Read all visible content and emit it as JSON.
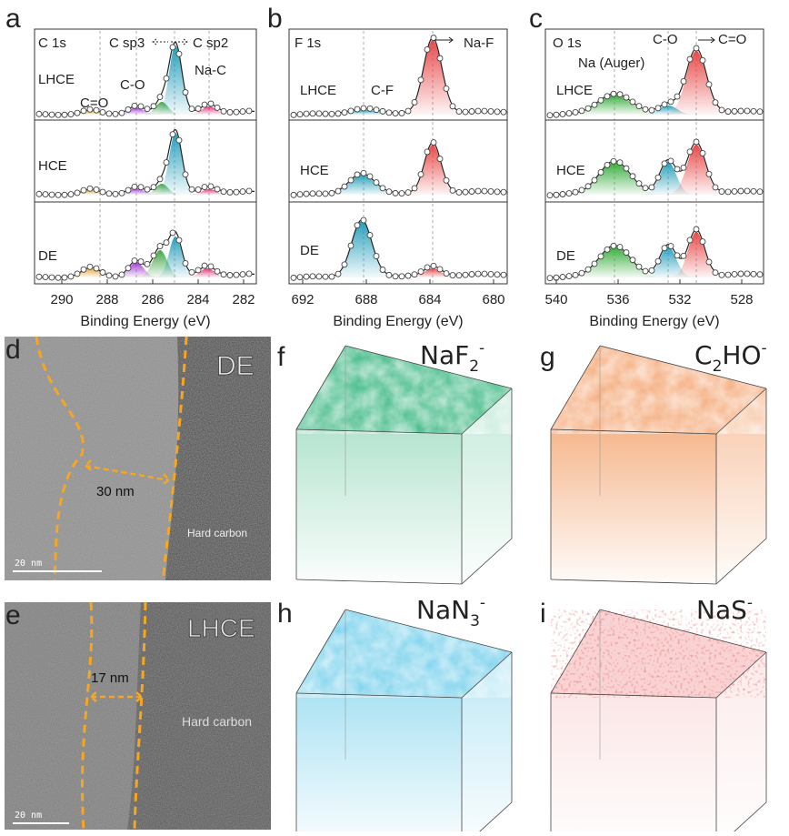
{
  "xps": [
    {
      "letter": "a",
      "core": "C 1s",
      "top_labels": [
        "C sp3",
        "C sp2"
      ],
      "peak_labels": [
        "C=O",
        "C-O",
        "Na-C"
      ],
      "rows": [
        "LHCE",
        "HCE",
        "DE"
      ],
      "xticks": [
        290,
        288,
        286,
        284,
        282
      ],
      "xlabel": "Binding Energy (eV)"
    },
    {
      "letter": "b",
      "core": "F 1s",
      "top_labels": [
        "Na-F"
      ],
      "peak_labels": [
        "C-F"
      ],
      "rows": [
        "LHCE",
        "HCE",
        "DE"
      ],
      "xticks": [
        692,
        688,
        684,
        680
      ],
      "xlabel": "Binding Energy (eV)"
    },
    {
      "letter": "c",
      "core": "O 1s",
      "top_labels": [
        "C-O",
        "C=O"
      ],
      "peak_labels": [
        "Na (Auger)"
      ],
      "rows": [
        "LHCE",
        "HCE",
        "DE"
      ],
      "xticks": [
        540,
        536,
        532,
        528
      ],
      "xlabel": "Binding Energy (eV)"
    }
  ],
  "tem": [
    {
      "letter": "d",
      "label": "DE",
      "thickness": "30 nm",
      "material": "Hard carbon",
      "scale": "20 nm"
    },
    {
      "letter": "e",
      "label": "LHCE",
      "thickness": "17 nm",
      "material": "Hard carbon",
      "scale": "20 nm"
    }
  ],
  "tof": [
    {
      "letter": "f",
      "ion": [
        "NaF",
        "2",
        "-"
      ]
    },
    {
      "letter": "g",
      "ion": [
        "C",
        "2",
        "HO",
        "-"
      ]
    },
    {
      "letter": "h",
      "ion": [
        "NaN",
        "3",
        "-"
      ]
    },
    {
      "letter": "i",
      "ion": [
        "NaS",
        "-"
      ]
    }
  ]
}
